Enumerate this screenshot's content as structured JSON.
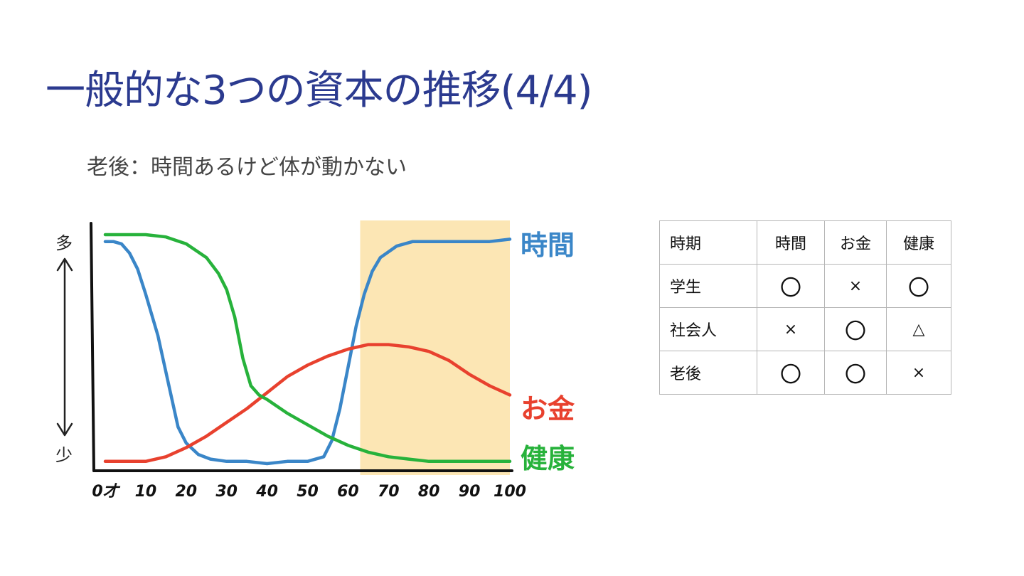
{
  "slide": {
    "title": "一般的な3つの資本の推移(4/4)",
    "subtitle": "老後：時間あるけど体が動かない"
  },
  "chart_data": {
    "type": "line",
    "x": [
      0,
      10,
      20,
      30,
      40,
      50,
      60,
      70,
      80,
      90,
      100
    ],
    "x_tick_labels": [
      "0才",
      "10",
      "20",
      "30",
      "40",
      "50",
      "60",
      "70",
      "80",
      "90",
      "100"
    ],
    "y_axis_top_label": "多",
    "y_axis_bottom_label": "少",
    "ylim": [
      0,
      100
    ],
    "xlim": [
      0,
      100
    ],
    "highlight_range": [
      63,
      100
    ],
    "series": [
      {
        "name": "時間",
        "color": "#3a86c8",
        "x": [
          0,
          2,
          4,
          6,
          8,
          10,
          13,
          16,
          18,
          20,
          23,
          26,
          30,
          35,
          40,
          45,
          50,
          54,
          56,
          58,
          60,
          62,
          64,
          66,
          68,
          72,
          76,
          80,
          85,
          90,
          95,
          100
        ],
        "y": [
          97,
          97,
          96,
          92,
          85,
          74,
          56,
          32,
          16,
          9,
          4,
          2,
          1,
          1,
          0,
          1,
          1,
          3,
          10,
          24,
          42,
          60,
          74,
          84,
          90,
          95,
          97,
          97,
          97,
          97,
          97,
          98
        ]
      },
      {
        "name": "お金",
        "color": "#e8412e",
        "x": [
          0,
          5,
          10,
          15,
          20,
          25,
          30,
          35,
          40,
          45,
          50,
          55,
          60,
          65,
          70,
          75,
          80,
          85,
          90,
          95,
          100
        ],
        "y": [
          1,
          1,
          1,
          3,
          7,
          12,
          18,
          24,
          31,
          38,
          43,
          47,
          50,
          52,
          52,
          51,
          49,
          45,
          39,
          34,
          30
        ]
      },
      {
        "name": "健康",
        "color": "#27b23b",
        "x": [
          0,
          5,
          10,
          15,
          20,
          25,
          28,
          30,
          32,
          34,
          36,
          38,
          40,
          45,
          50,
          55,
          60,
          65,
          70,
          75,
          80,
          85,
          90,
          95,
          100
        ],
        "y": [
          100,
          100,
          100,
          99,
          96,
          90,
          83,
          76,
          64,
          46,
          34,
          30,
          28,
          22,
          17,
          12,
          8,
          5,
          3,
          2,
          1,
          1,
          1,
          1,
          1
        ]
      }
    ]
  },
  "table": {
    "header": [
      "時期",
      "時間",
      "お金",
      "健康"
    ],
    "rows": [
      [
        "学生",
        "〇",
        "×",
        "〇"
      ],
      [
        "社会人",
        "×",
        "〇",
        "△"
      ],
      [
        "老後",
        "〇",
        "〇",
        "×"
      ]
    ]
  }
}
